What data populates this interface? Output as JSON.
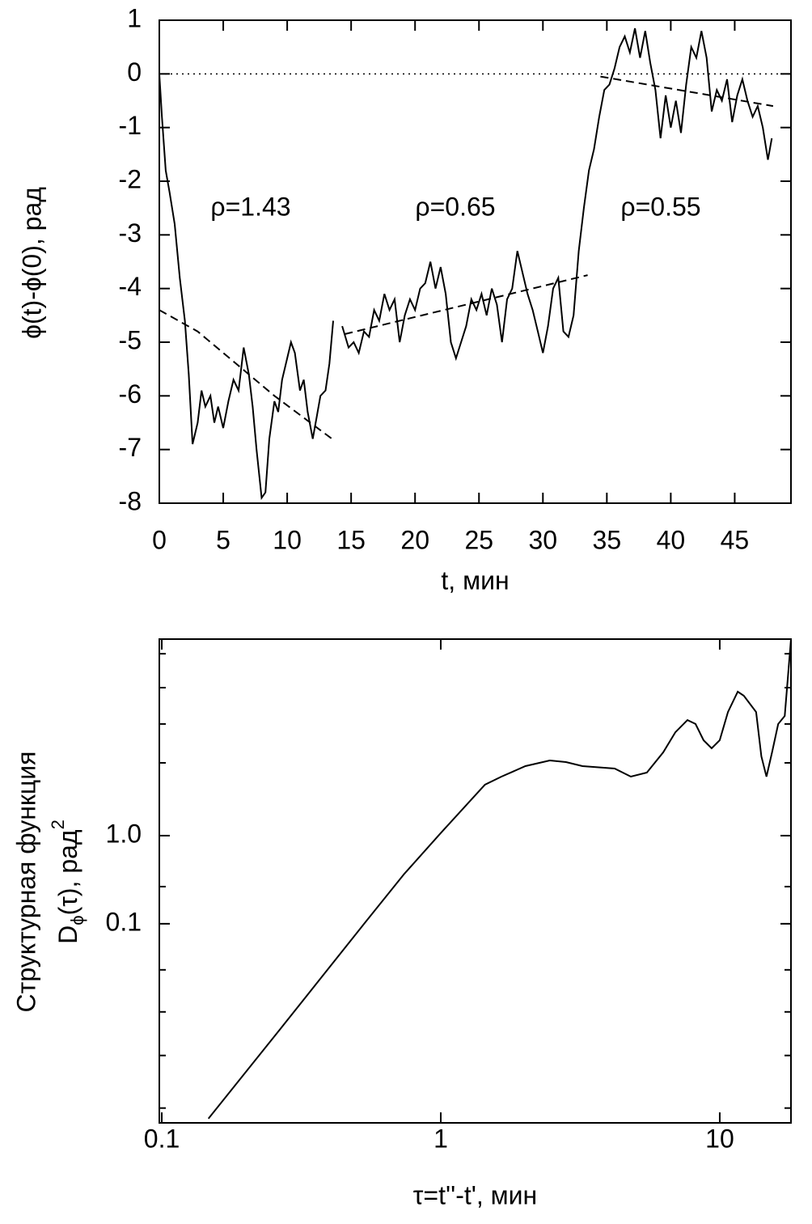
{
  "chart_data": [
    {
      "type": "line",
      "xlabel": "t, мин",
      "ylabel": "ϕ(t)-ϕ(0), рад",
      "xlim": [
        0,
        49.4
      ],
      "ylim": [
        -8,
        1
      ],
      "xticks": [
        0,
        5,
        10,
        15,
        20,
        25,
        30,
        35,
        40,
        45
      ],
      "yticks": [
        1,
        0,
        -1,
        -2,
        -3,
        -4,
        -5,
        -6,
        -7,
        -8
      ],
      "reference_line": 0,
      "annotations": [
        "ρ=1.43",
        "ρ=0.65",
        "ρ=0.55"
      ],
      "series": [
        {
          "color": "#000000",
          "style": "solid",
          "x": [
            0,
            0.2,
            0.5,
            0.8,
            1.2,
            1.6,
            2,
            2.3,
            2.6,
            3,
            3.3,
            3.6,
            4,
            4.3,
            4.6,
            5,
            5.4,
            5.8,
            6.2,
            6.6,
            7,
            7.3,
            7.6,
            8,
            8.3,
            8.6,
            9,
            9.3,
            9.6,
            10,
            10.3,
            10.6,
            11,
            11.3,
            11.6,
            12,
            12.3,
            12.6,
            13,
            13.3,
            13.6,
            13.9,
            14.3,
            14.8,
            15.2,
            15.6,
            16,
            16.4,
            16.8,
            17.2,
            17.6,
            18,
            18.4,
            18.8,
            19.2,
            19.6,
            20,
            20.4,
            20.8,
            21.2,
            21.6,
            22,
            22.4,
            22.8,
            23.2,
            23.6,
            24,
            24.4,
            24.8,
            25.2,
            25.6,
            26,
            26.4,
            26.8,
            27.2,
            27.6,
            28,
            28.4,
            28.8,
            29.2,
            29.6,
            30,
            30.4,
            30.8,
            31.2,
            31.6,
            32,
            32.4,
            32.8,
            33.2,
            33.6,
            34,
            34.4,
            34.8,
            35.2,
            35.6,
            36,
            36.4,
            36.8,
            37.2,
            37.6,
            38,
            38.4,
            38.8,
            39.2,
            39.6,
            40,
            40.4,
            40.8,
            41.2,
            41.6,
            42,
            42.4,
            42.8,
            43.2,
            43.6,
            44,
            44.4,
            44.8,
            45.2,
            45.6,
            46,
            46.4,
            46.8,
            47.2,
            47.6,
            47.9
          ],
          "values": [
            0,
            -0.8,
            -1.8,
            -2.2,
            -2.8,
            -3.8,
            -4.6,
            -5.6,
            -6.9,
            -6.5,
            -5.9,
            -6.2,
            -6.0,
            -6.5,
            -6.2,
            -6.6,
            -6.1,
            -5.7,
            -5.9,
            -5.1,
            -5.6,
            -6.2,
            -7.0,
            -7.9,
            -7.8,
            -6.8,
            -6.1,
            -6.3,
            -5.7,
            -5.3,
            -5.0,
            -5.2,
            -5.9,
            -5.7,
            -6.3,
            -6.8,
            -6.4,
            -6.0,
            -5.9,
            -5.4,
            -4.6,
            null,
            -4.7,
            -5.1,
            -5.0,
            -5.2,
            -4.8,
            -4.9,
            -4.4,
            -4.6,
            -4.1,
            -4.4,
            -4.2,
            -5.0,
            -4.5,
            -4.2,
            -4.4,
            -4.0,
            -3.9,
            -3.5,
            -4.0,
            -3.6,
            -4.1,
            -5.0,
            -5.3,
            -5.0,
            -4.7,
            -4.2,
            -4.4,
            -4.1,
            -4.5,
            -4.0,
            -4.3,
            -5.0,
            -4.2,
            -4.0,
            -3.3,
            -3.7,
            -4.1,
            -4.4,
            -4.8,
            -5.2,
            -4.7,
            -4.0,
            -3.8,
            -4.8,
            -4.9,
            -4.5,
            -3.3,
            -2.5,
            -1.8,
            -1.4,
            -0.8,
            -0.3,
            -0.2,
            0.1,
            0.5,
            0.7,
            0.4,
            0.85,
            0.3,
            0.8,
            0.2,
            -0.3,
            -1.2,
            -0.4,
            -1.0,
            -0.5,
            -1.1,
            -0.2,
            0.5,
            0.3,
            0.8,
            0.3,
            -0.7,
            -0.3,
            -0.5,
            -0.1,
            -0.9,
            -0.4,
            -0.1,
            -0.5,
            -0.8,
            -0.6,
            -1.0,
            -1.6,
            -1.2
          ]
        },
        {
          "color": "#000000",
          "style": "dashed",
          "x": [
            0,
            3,
            6,
            9,
            13.5,
            14,
            14.5,
            33.5,
            34,
            34.5,
            48
          ],
          "values": [
            -4.4,
            -4.8,
            -5.4,
            -6.0,
            -6.8,
            null,
            -4.85,
            -3.75,
            null,
            -0.05,
            -0.6
          ]
        }
      ]
    },
    {
      "type": "line",
      "xlabel": "τ=t''-t', мин",
      "ylabel": {
        "line1": "Структурная функция",
        "main": "D",
        "sub": "ϕ",
        "rest": "(τ), рад",
        "sup": "2"
      },
      "log_x": true,
      "log_y": true,
      "xlim": [
        0.098,
        18
      ],
      "ylim": [
        0.00055,
        170
      ],
      "xticks": [
        0.1,
        1,
        10
      ],
      "yticks": [
        0.1,
        {
          "value": 1,
          "label": "1.0"
        }
      ],
      "yminor_ticks": [
        116,
        47.8,
        18.5,
        6.7,
        0.264,
        0.03,
        0.01,
        0.0032,
        0.00081
      ],
      "series": [
        {
          "color": "#000000",
          "style": "solid",
          "x": [
            0.147,
            0.195,
            0.272,
            0.38,
            0.531,
            0.741,
            1.0,
            1.44,
            1.65,
            2.01,
            2.46,
            2.81,
            3.22,
            4.2,
            4.8,
            5.48,
            6.27,
            6.93,
            7.66,
            8.19,
            8.75,
            9.35,
            10,
            10.7,
            11.6,
            12.2,
            13.5,
            14.1,
            14.7,
            15.4,
            16.2,
            17.1,
            18.0
          ],
          "values": [
            0.000615,
            0.00188,
            0.00698,
            0.0264,
            0.1,
            0.371,
            1.07,
            3.78,
            4.67,
            6.15,
            7.13,
            6.84,
            6.15,
            5.77,
            4.67,
            5.19,
            8.81,
            14.9,
            20.5,
            18.5,
            12.1,
            9.79,
            12.1,
            25.3,
            43.0,
            38.7,
            25.3,
            7.93,
            4.67,
            8.81,
            18.5,
            22.8,
            169
          ]
        }
      ]
    }
  ]
}
